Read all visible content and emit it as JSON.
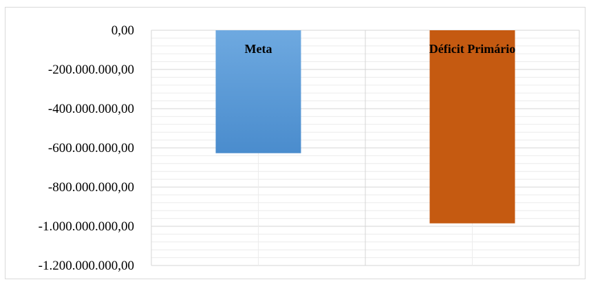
{
  "chart_data": {
    "type": "bar",
    "categories": [
      "Meta",
      "Déficit Primário"
    ],
    "values": [
      -627000000,
      -985000000
    ],
    "ylim": [
      -1200000000,
      0
    ],
    "yticks": [
      0,
      -200000000,
      -400000000,
      -600000000,
      -800000000,
      -1000000000,
      -1200000000
    ],
    "ytick_labels": [
      "0,00",
      "-200.000.000,00",
      "-400.000.000,00",
      "-600.000.000,00",
      "-800.000.000,00",
      "-1.000.000.000,00",
      "-1.200.000.000,00"
    ],
    "colors": [
      "#5b9bd5",
      "#c55a11"
    ],
    "title": "",
    "xlabel": "",
    "ylabel": "",
    "grid": true,
    "legend": "none"
  }
}
